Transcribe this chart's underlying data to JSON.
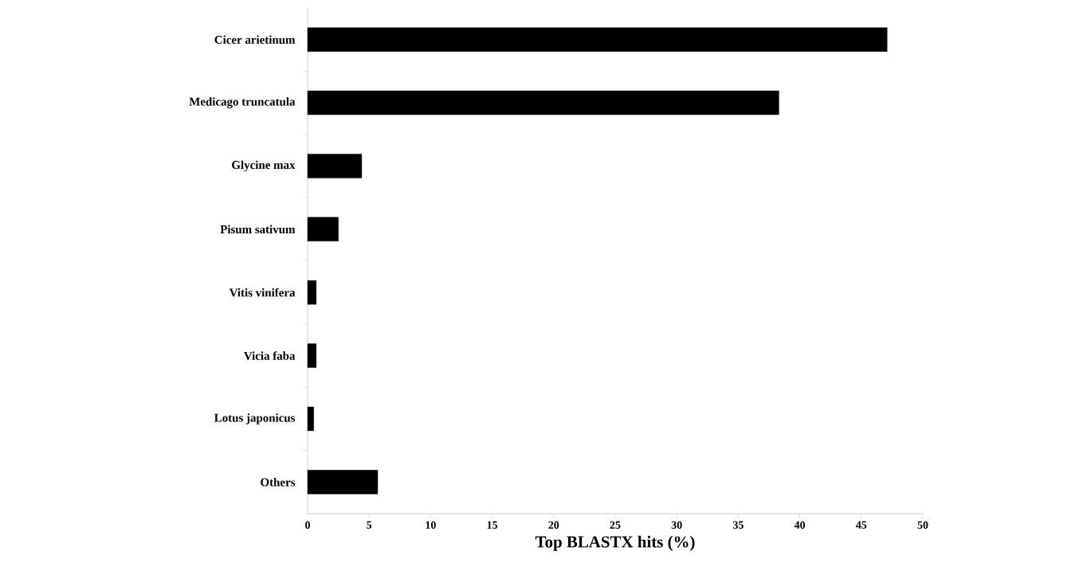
{
  "chart_data": {
    "type": "bar",
    "orientation": "horizontal",
    "xlabel": "Top BLASTX hits (%)",
    "categories": [
      "Cicer arietinum",
      "Medicago truncatula",
      "Glycine max",
      "Pisum sativum",
      "Vitis vinifera",
      "Vicia faba",
      "Lotus japonicus",
      "Others"
    ],
    "values": [
      47.1,
      38.3,
      4.4,
      2.5,
      0.7,
      0.7,
      0.5,
      5.7
    ],
    "color": "#000000",
    "xlim": [
      0,
      50
    ],
    "xticks": [
      0,
      5,
      10,
      15,
      20,
      25,
      30,
      35,
      40,
      45,
      50
    ],
    "grid": false
  }
}
